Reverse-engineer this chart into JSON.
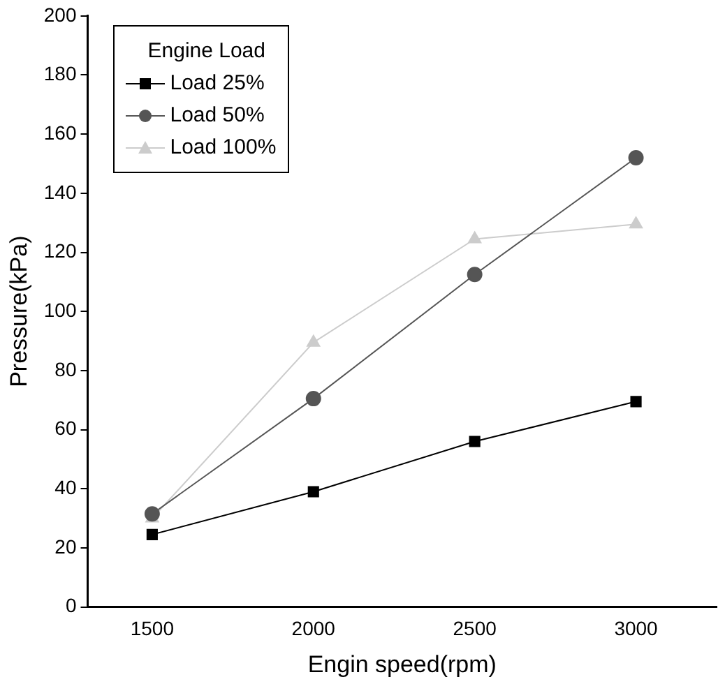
{
  "chart_data": {
    "type": "line",
    "xlabel": "Engin speed(rpm)",
    "ylabel": "Pressure(kPa)",
    "legend_title": "Engine Load",
    "legend": "top left",
    "grid": false,
    "x": [
      1500,
      2000,
      2500,
      3000
    ],
    "xlim": [
      1300,
      3250
    ],
    "xticks": [
      1500,
      2000,
      2500,
      3000
    ],
    "ylim": [
      0,
      200
    ],
    "yticks": [
      0,
      20,
      40,
      60,
      80,
      100,
      120,
      140,
      160,
      180,
      200
    ],
    "series": [
      {
        "name": "Load 25%",
        "color": "#000000",
        "marker": "square",
        "values": [
          24.5,
          39,
          56,
          69.5
        ]
      },
      {
        "name": "Load 50%",
        "color": "#555555",
        "marker": "circle",
        "values": [
          31.5,
          70.5,
          112.5,
          152
        ]
      },
      {
        "name": "Load 100%",
        "color": "#cccccc",
        "marker": "triangle",
        "values": [
          30,
          89.5,
          124.5,
          129.5
        ]
      }
    ]
  }
}
